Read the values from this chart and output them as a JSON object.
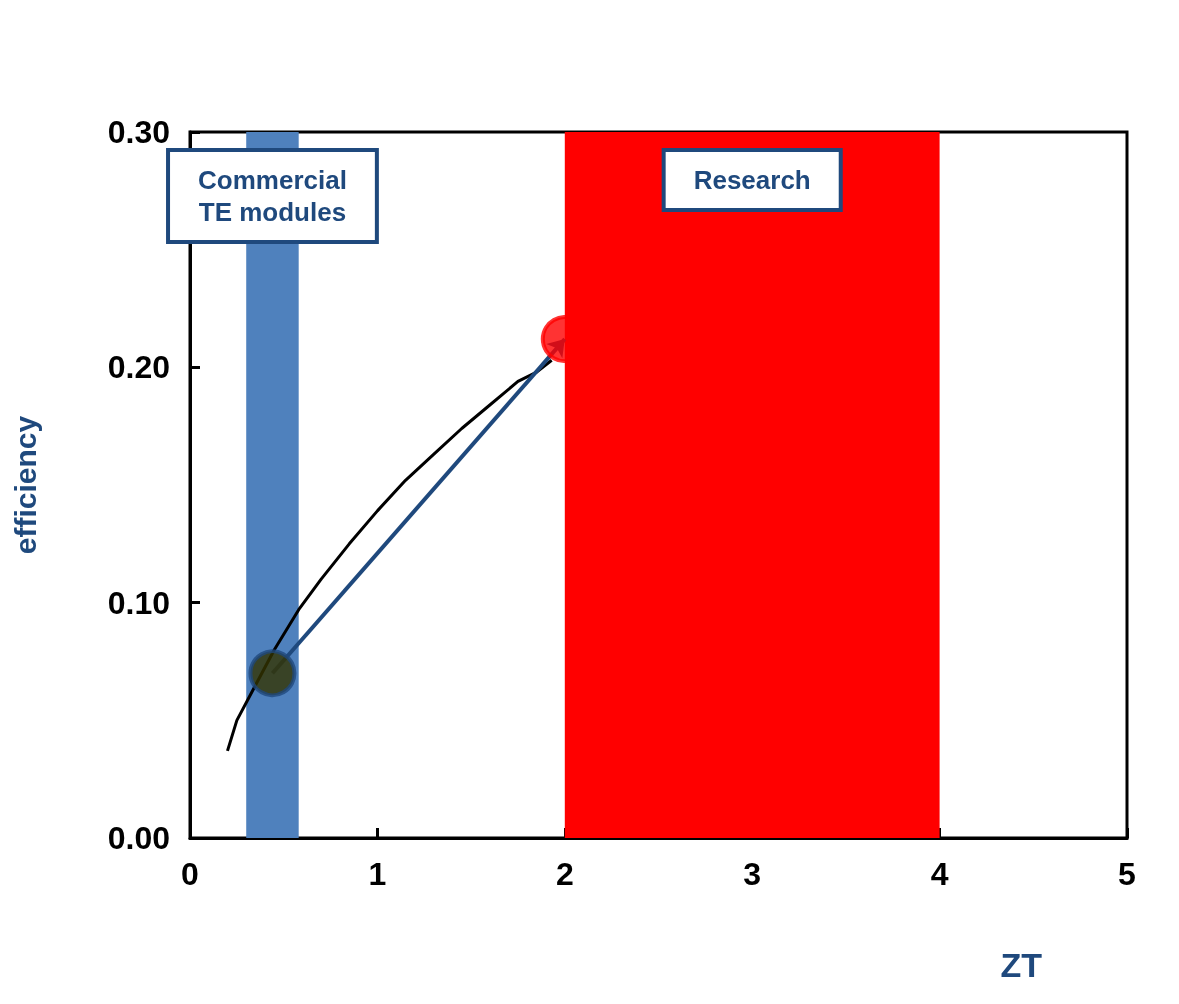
{
  "chart_data": {
    "type": "line",
    "xlabel": "ZT",
    "ylabel": "efficiency",
    "xlim": [
      0,
      5
    ],
    "xticks": [
      0,
      1,
      2,
      3,
      4,
      5
    ],
    "ylim": [
      0,
      0.3
    ],
    "yticks": [
      {
        "value": 0,
        "label": "0.00"
      },
      {
        "value": 0.1,
        "label": "0.10"
      },
      {
        "value": 0.2,
        "label": "0.20"
      },
      {
        "value": 0.3,
        "label": "0.30"
      }
    ],
    "series": [
      {
        "color": "#000000",
        "x": [
          0.2,
          0.25,
          0.35,
          0.45,
          0.58,
          0.7,
          0.85,
          1.0,
          1.15,
          1.3,
          1.45,
          1.6,
          1.75,
          1.85,
          1.93
        ],
        "values": [
          0.037,
          0.05,
          0.065,
          0.08,
          0.097,
          0.11,
          0.125,
          0.139,
          0.152,
          0.163,
          0.174,
          0.184,
          0.194,
          0.198,
          0.203
        ]
      },
      {
        "type": "scatter",
        "marker": "circle",
        "colors": [
          "#333300",
          "#ff0000"
        ],
        "x": [
          0.44,
          2.0
        ],
        "values": [
          0.07,
          0.212
        ]
      }
    ],
    "bands": [
      {
        "axis": "x",
        "from": 0.3,
        "to": 0.58,
        "label": "Commercial\nTE modules",
        "color": "#4f81bd"
      },
      {
        "axis": "x",
        "from": 2,
        "to": 4,
        "label": "Research",
        "color": "#ff0000"
      }
    ],
    "line_style": "solid",
    "grid": false
  }
}
